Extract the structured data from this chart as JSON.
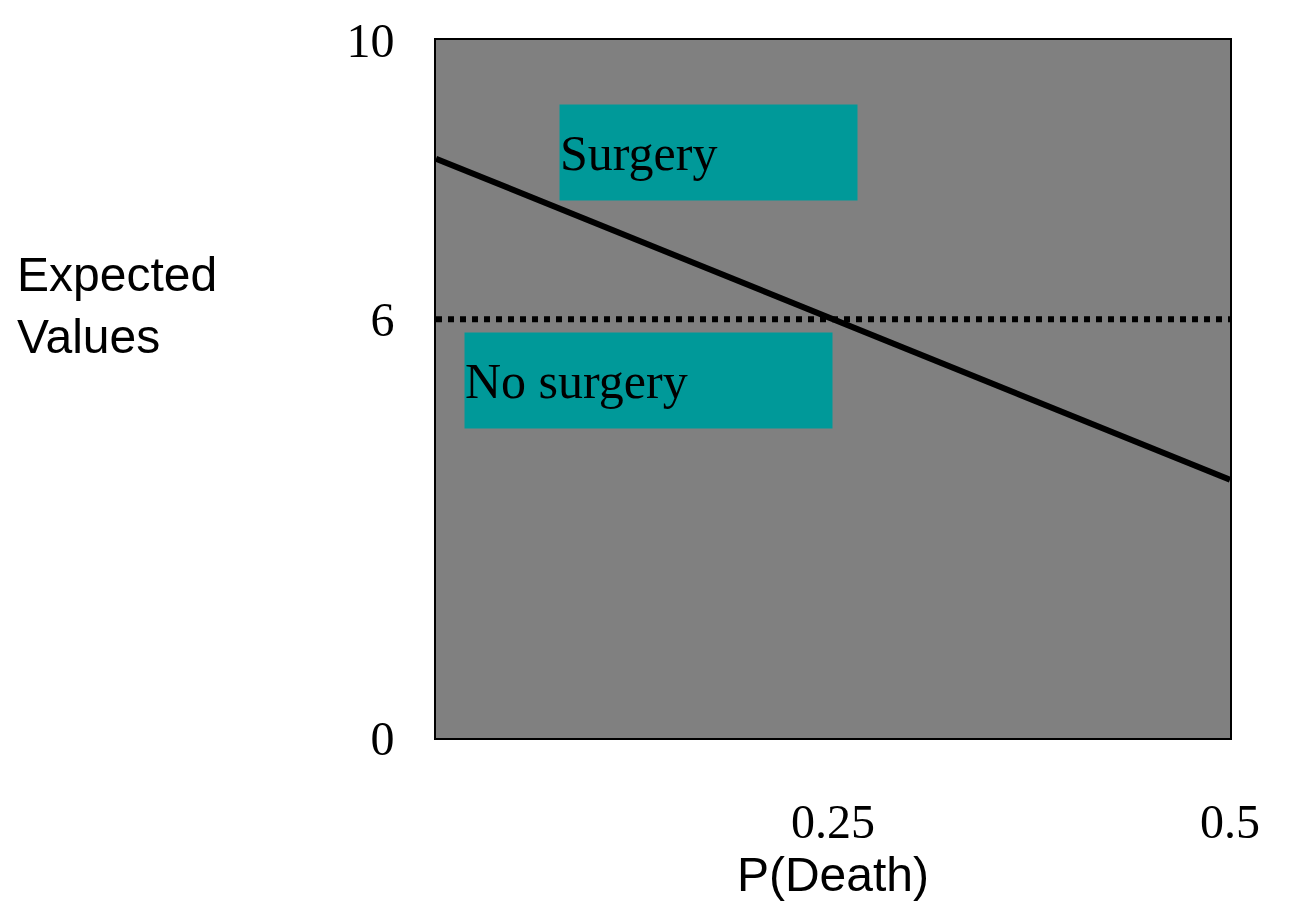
{
  "chart_data": {
    "type": "line",
    "xlabel": "P(Death)",
    "ylabel": "Expected Values",
    "x": [
      0,
      0.5
    ],
    "series": [
      {
        "name": "Surgery",
        "color": "#000000",
        "values": [
          8.3,
          3.7
        ],
        "line_style": "solid"
      },
      {
        "name": "No surgery",
        "color": "#000000",
        "values": [
          6,
          6
        ],
        "line_style": "dotted"
      }
    ],
    "xlim": [
      0,
      0.5
    ],
    "xticks": [
      0.25,
      0.5
    ],
    "ylim": [
      0,
      10
    ],
    "yticks": [
      0,
      6,
      10
    ],
    "legend": false,
    "marker": "none"
  }
}
